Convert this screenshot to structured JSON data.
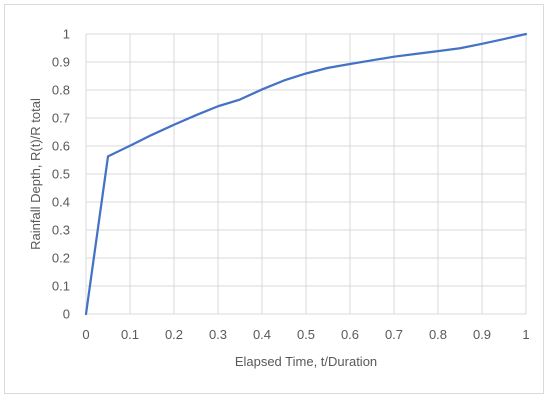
{
  "chart_data": {
    "type": "line",
    "title": "",
    "xlabel": "Elapsed Time, t/Duration",
    "ylabel": "Rainfall Depth, R(t)/R total",
    "xlim": [
      0,
      1
    ],
    "ylim": [
      0,
      1
    ],
    "xticks": [
      0,
      0.1,
      0.2,
      0.3,
      0.4,
      0.5,
      0.6,
      0.7,
      0.8,
      0.9,
      1
    ],
    "xtick_labels": [
      "0",
      "0.1",
      "0.2",
      "0.3",
      "0.4",
      "0.5",
      "0.6",
      "0.7",
      "0.8",
      "0.9",
      "1"
    ],
    "yticks": [
      0,
      0.1,
      0.2,
      0.3,
      0.4,
      0.5,
      0.6,
      0.7,
      0.8,
      0.9,
      1
    ],
    "ytick_labels": [
      "0",
      "0.1",
      "0.2",
      "0.3",
      "0.4",
      "0.5",
      "0.6",
      "0.7",
      "0.8",
      "0.9",
      "1"
    ],
    "grid": true,
    "legend": "none",
    "colors": {
      "line": "#4472c4",
      "grid": "#d9d9d9",
      "text": "#595959"
    },
    "series": [
      {
        "x": [
          0,
          0.05,
          0.1,
          0.15,
          0.2,
          0.25,
          0.3,
          0.35,
          0.4,
          0.45,
          0.5,
          0.55,
          0.6,
          0.65,
          0.7,
          0.75,
          0.8,
          0.85,
          0.9,
          0.95,
          1
        ],
        "y": [
          0,
          0.563,
          0.601,
          0.64,
          0.676,
          0.71,
          0.742,
          0.766,
          0.802,
          0.834,
          0.859,
          0.879,
          0.893,
          0.906,
          0.919,
          0.929,
          0.939,
          0.949,
          0.965,
          0.982,
          1
        ]
      }
    ]
  }
}
